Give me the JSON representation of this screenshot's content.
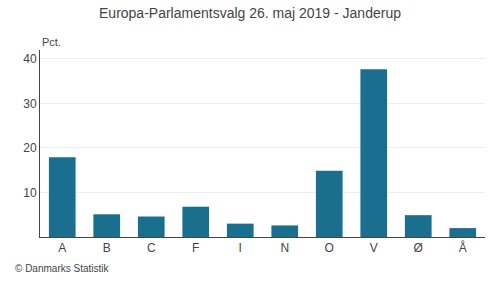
{
  "chart_data": {
    "type": "bar",
    "title": "Europa-Parlamentsvalg 26. maj 2019 - Janderup",
    "categories": [
      "A",
      "B",
      "C",
      "F",
      "I",
      "N",
      "O",
      "V",
      "Ø",
      "Å"
    ],
    "values": [
      17.9,
      5.1,
      4.6,
      6.8,
      3.0,
      2.6,
      14.9,
      37.7,
      4.9,
      2.0
    ],
    "color": "#1a6e8e",
    "ylabel": "Pct.",
    "annotations": [
      "© Danmarks Statistik"
    ],
    "ylim": [
      0,
      42
    ],
    "yticks": [
      10,
      20,
      30,
      40
    ],
    "grid": true
  }
}
